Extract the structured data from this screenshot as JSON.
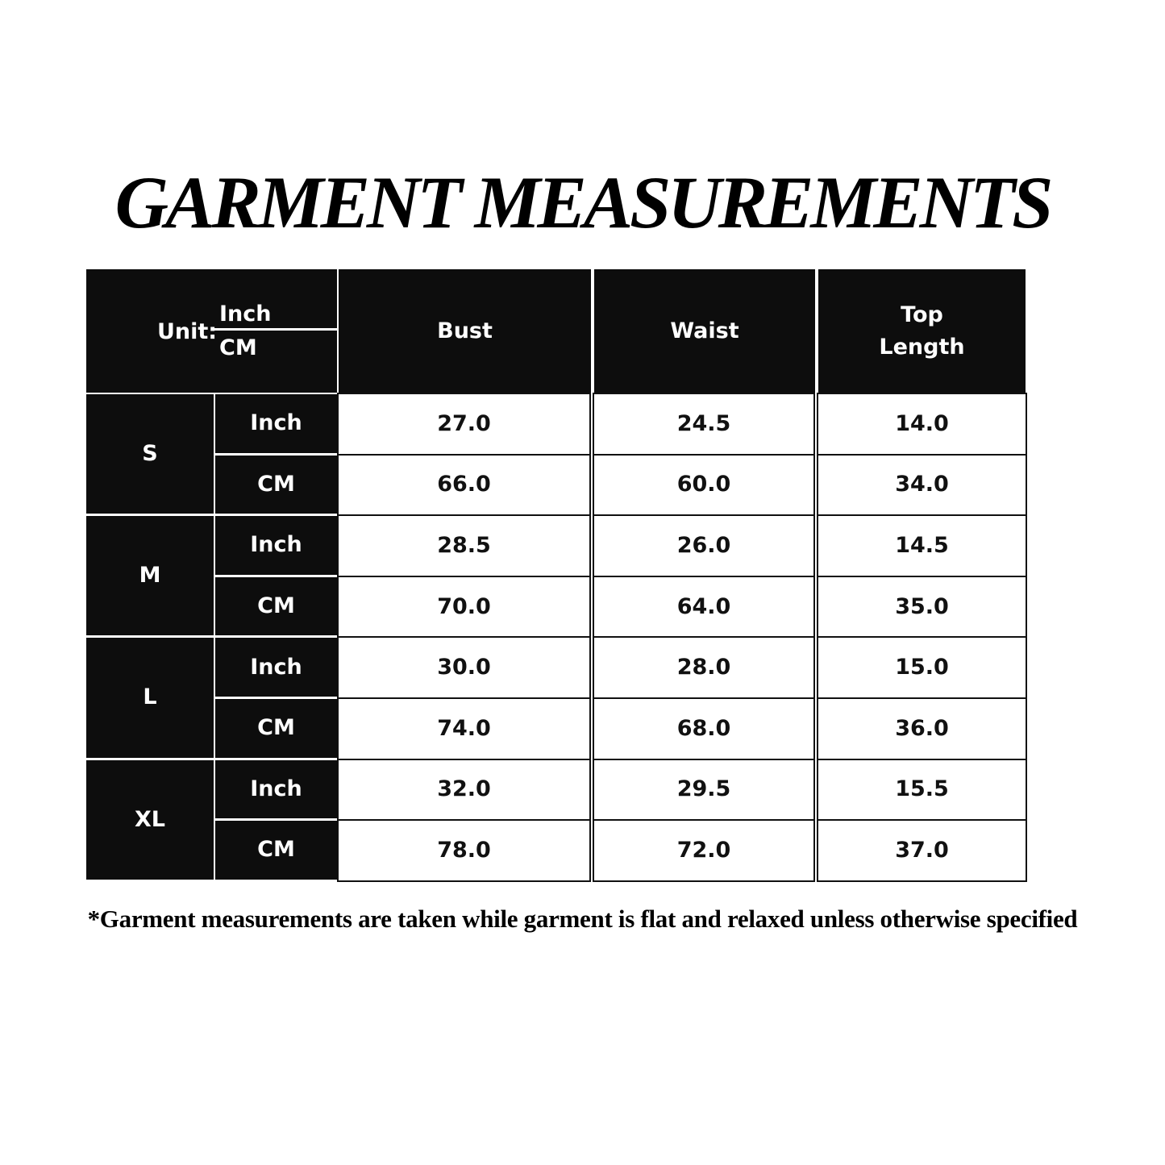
{
  "title": "GARMENT MEASUREMENTS",
  "table": {
    "unit_label": "Unit:",
    "unit_top": "Inch",
    "unit_bottom": "CM",
    "columns": [
      "Bust",
      "Waist",
      "Top\nLength"
    ],
    "sizes": [
      {
        "size": "S",
        "rows": [
          {
            "unit": "Inch",
            "values": [
              "27.0",
              "24.5",
              "14.0"
            ]
          },
          {
            "unit": "CM",
            "values": [
              "66.0",
              "60.0",
              "34.0"
            ]
          }
        ]
      },
      {
        "size": "M",
        "rows": [
          {
            "unit": "Inch",
            "values": [
              "28.5",
              "26.0",
              "14.5"
            ]
          },
          {
            "unit": "CM",
            "values": [
              "70.0",
              "64.0",
              "35.0"
            ]
          }
        ]
      },
      {
        "size": "L",
        "rows": [
          {
            "unit": "Inch",
            "values": [
              "30.0",
              "28.0",
              "15.0"
            ]
          },
          {
            "unit": "CM",
            "values": [
              "74.0",
              "68.0",
              "36.0"
            ]
          }
        ]
      },
      {
        "size": "XL",
        "rows": [
          {
            "unit": "Inch",
            "values": [
              "32.0",
              "29.5",
              "15.5"
            ]
          },
          {
            "unit": "CM",
            "values": [
              "78.0",
              "72.0",
              "37.0"
            ]
          }
        ]
      }
    ]
  },
  "footnote": "*Garment measurements are taken while garment is flat and relaxed unless otherwise specified",
  "colors": {
    "header_bg": "#0d0d0d",
    "header_text": "#ffffff",
    "cell_text": "#111111"
  }
}
